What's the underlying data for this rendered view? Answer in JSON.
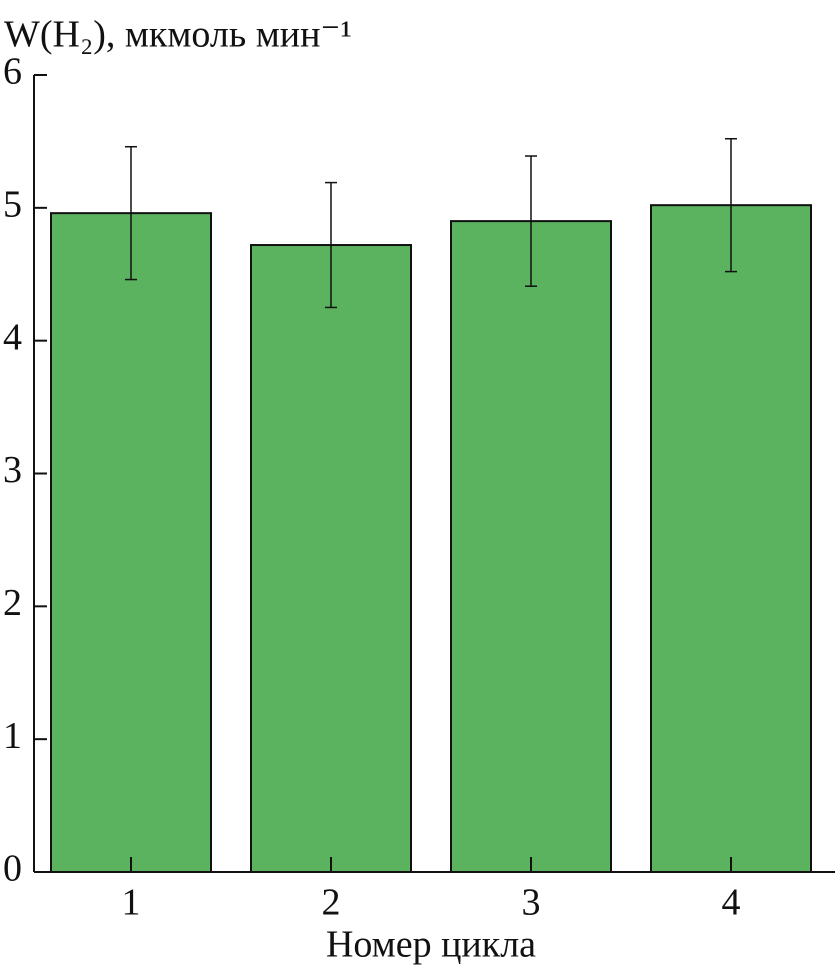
{
  "chart_data": {
    "type": "bar",
    "y_label": "W(H₂), мкмоль мин⁻¹",
    "x_label": "Номер цикла",
    "categories": [
      "1",
      "2",
      "3",
      "4"
    ],
    "values": [
      4.96,
      4.72,
      4.9,
      5.02
    ],
    "errors": [
      0.5,
      0.47,
      0.49,
      0.5
    ],
    "color": "#5bb360",
    "ylim": [
      0,
      6
    ],
    "yticks": [
      0,
      1,
      2,
      3,
      4,
      5,
      6
    ],
    "grid": false
  }
}
